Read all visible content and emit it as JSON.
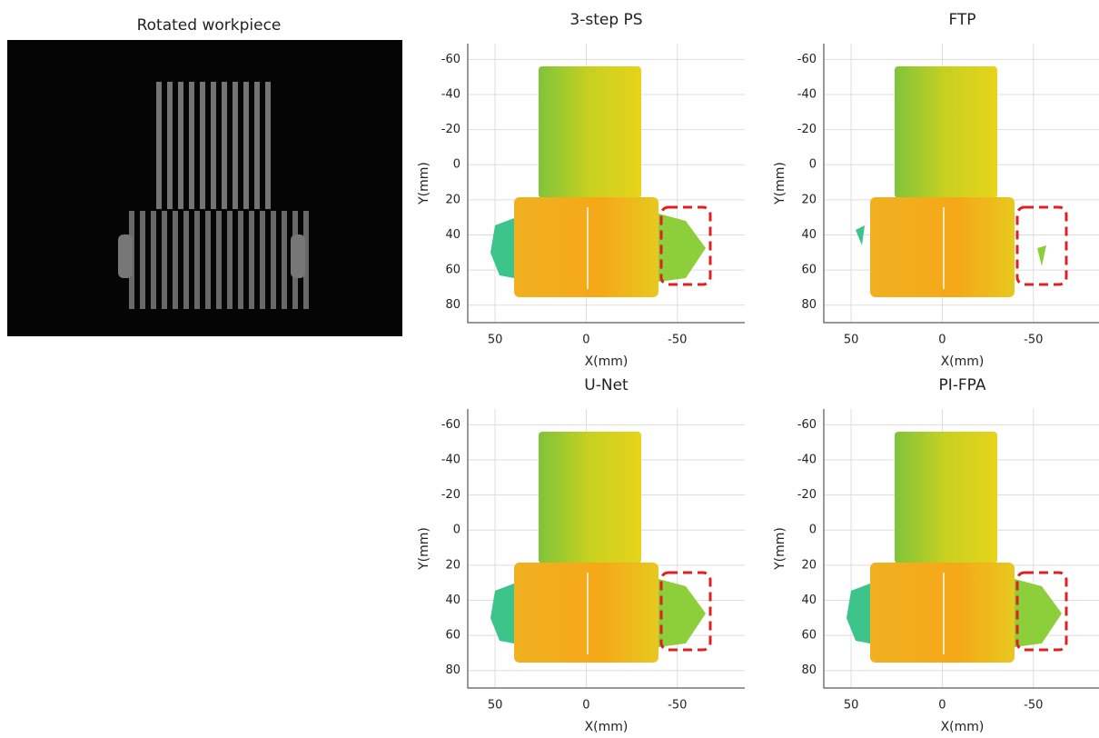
{
  "image_panel": {
    "title": "Rotated workpiece"
  },
  "plots": [
    {
      "title": "3-step PS",
      "xlabel": "X(mm)",
      "ylabel": "Y(mm)",
      "xlim": [
        65,
        -87
      ],
      "ylim": [
        -69,
        90
      ],
      "xticks": [
        50,
        0,
        -50
      ],
      "yticks": [
        -60,
        -40,
        -20,
        0,
        20,
        40,
        60,
        80
      ],
      "grid": true
    },
    {
      "title": "FTP",
      "xlabel": "X(mm)",
      "ylabel": "Y(mm)",
      "xlim": [
        65,
        -87
      ],
      "ylim": [
        -69,
        90
      ],
      "xticks": [
        50,
        0,
        -50
      ],
      "yticks": [
        -60,
        -40,
        -20,
        0,
        20,
        40,
        60,
        80
      ],
      "grid": true
    },
    {
      "title": "U-Net",
      "xlabel": "X(mm)",
      "ylabel": "Y(mm)",
      "xlim": [
        65,
        -87
      ],
      "ylim": [
        -69,
        90
      ],
      "xticks": [
        50,
        0,
        -50
      ],
      "yticks": [
        -60,
        -40,
        -20,
        0,
        20,
        40,
        60,
        80
      ],
      "grid": true
    },
    {
      "title": "PI-FPA",
      "xlabel": "X(mm)",
      "ylabel": "Y(mm)",
      "xlim": [
        65,
        -87
      ],
      "ylim": [
        -69,
        90
      ],
      "xticks": [
        50,
        0,
        -50
      ],
      "yticks": [
        -60,
        -40,
        -20,
        0,
        20,
        40,
        60,
        80
      ],
      "grid": true
    }
  ]
}
